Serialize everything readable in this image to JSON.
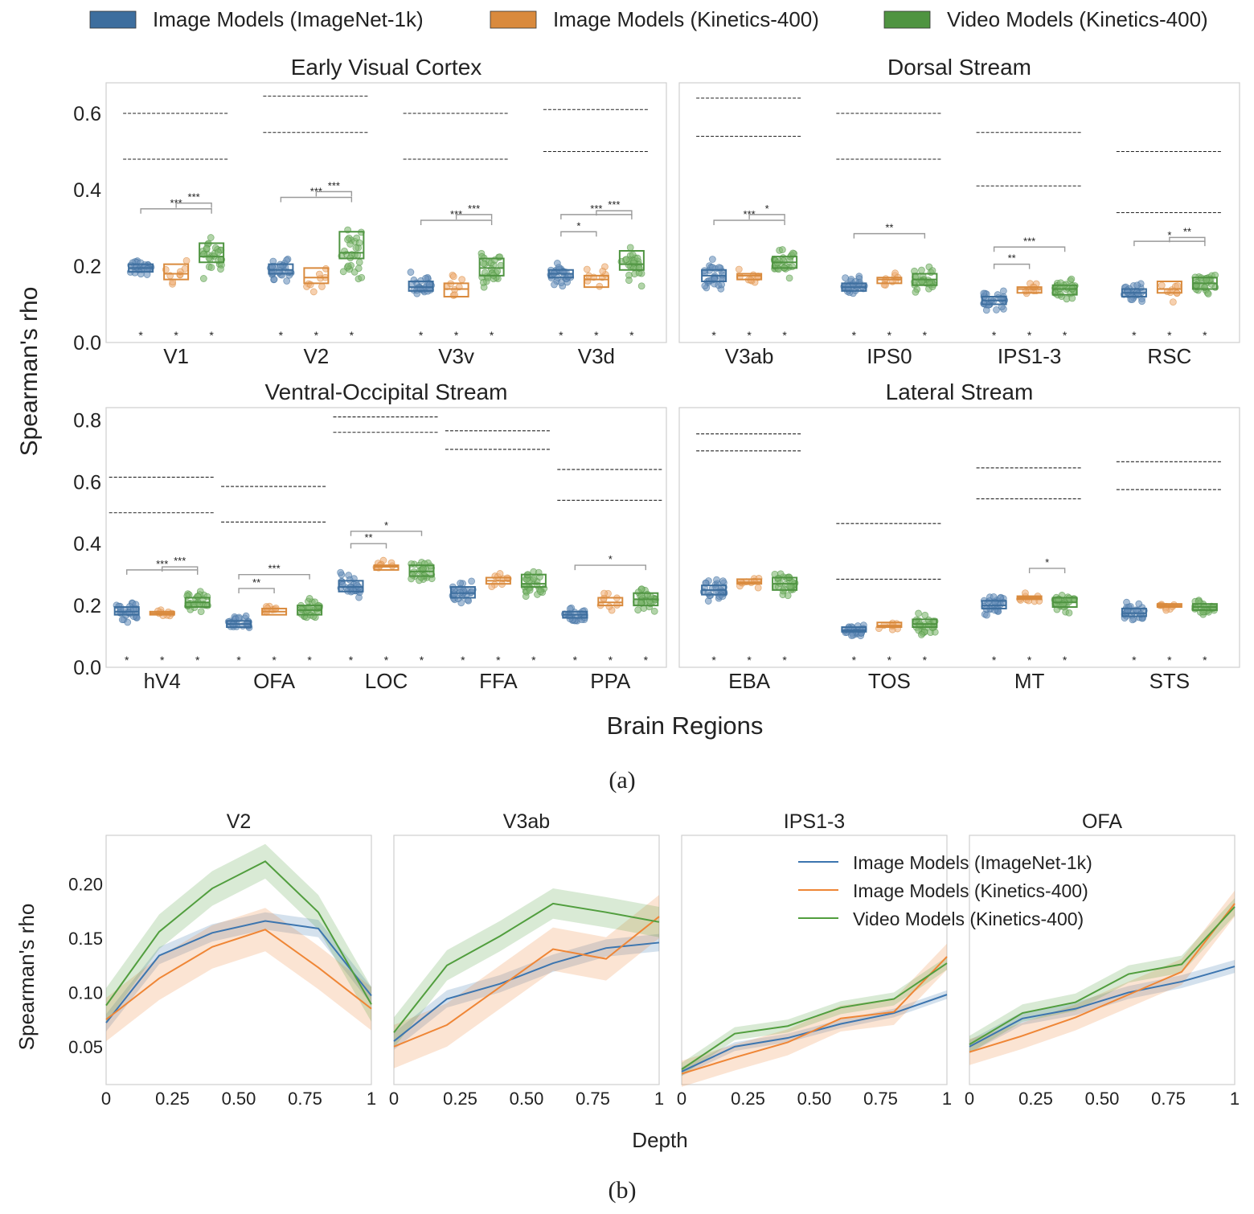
{
  "legend_top": [
    {
      "label": "Image Models (ImageNet-1k)",
      "color": "#3d6e9e"
    },
    {
      "label": "Image Models (Kinetics-400)",
      "color": "#d98a3d"
    },
    {
      "label": "Video Models (Kinetics-400)",
      "color": "#4f9441"
    }
  ],
  "panel_a_ylabel": "Spearman's rho",
  "panel_a_xlabel": "Brain Regions",
  "caption_a": "(a)",
  "caption_b": "(b)",
  "panel_b_ylabel": "Spearman's rho",
  "panel_b_xlabel": "Depth",
  "chart_data": [
    {
      "type": "box",
      "title": "Early Visual Cortex",
      "ylim": [
        0,
        0.68
      ],
      "yticks": [
        "0.0",
        "0.2",
        "0.4",
        "0.6"
      ],
      "categories": [
        "V1",
        "V2",
        "V3v",
        "V3d"
      ],
      "medians": [
        [
          0.195,
          0.18,
          0.225
        ],
        [
          0.19,
          0.17,
          0.235
        ],
        [
          0.145,
          0.14,
          0.195
        ],
        [
          0.18,
          0.165,
          0.205
        ]
      ],
      "q1": [
        [
          0.185,
          0.165,
          0.21
        ],
        [
          0.18,
          0.155,
          0.22
        ],
        [
          0.135,
          0.12,
          0.175
        ],
        [
          0.17,
          0.145,
          0.19
        ]
      ],
      "q3": [
        [
          0.205,
          0.205,
          0.26
        ],
        [
          0.205,
          0.195,
          0.29
        ],
        [
          0.16,
          0.155,
          0.22
        ],
        [
          0.19,
          0.175,
          0.24
        ]
      ],
      "ceiling": [
        [
          0.48,
          0.6
        ],
        [
          0.55,
          0.645
        ],
        [
          0.48,
          0.6
        ],
        [
          0.5,
          0.61
        ]
      ],
      "brackets": [
        {
          "cat": 0,
          "from": 0,
          "to": 2,
          "y": 0.35,
          "label": "***"
        },
        {
          "cat": 0,
          "from": 1,
          "to": 2,
          "y": 0.365,
          "label": "***"
        },
        {
          "cat": 1,
          "from": 0,
          "to": 2,
          "y": 0.38,
          "label": "***"
        },
        {
          "cat": 1,
          "from": 1,
          "to": 2,
          "y": 0.395,
          "label": "***"
        },
        {
          "cat": 2,
          "from": 0,
          "to": 2,
          "y": 0.32,
          "label": "***"
        },
        {
          "cat": 2,
          "from": 1,
          "to": 2,
          "y": 0.335,
          "label": "***"
        },
        {
          "cat": 3,
          "from": 0,
          "to": 1,
          "y": 0.29,
          "label": "*"
        },
        {
          "cat": 3,
          "from": 0,
          "to": 2,
          "y": 0.335,
          "label": "***"
        },
        {
          "cat": 3,
          "from": 1,
          "to": 2,
          "y": 0.345,
          "label": "***"
        }
      ]
    },
    {
      "type": "box",
      "title": "Dorsal Stream",
      "ylim": [
        0,
        0.68
      ],
      "yticks": [],
      "categories": [
        "V3ab",
        "IPS0",
        "IPS1-3",
        "RSC"
      ],
      "medians": [
        [
          0.175,
          0.175,
          0.21
        ],
        [
          0.145,
          0.165,
          0.165
        ],
        [
          0.11,
          0.14,
          0.14
        ],
        [
          0.13,
          0.14,
          0.155
        ]
      ],
      "q1": [
        [
          0.16,
          0.165,
          0.195
        ],
        [
          0.135,
          0.155,
          0.15
        ],
        [
          0.1,
          0.13,
          0.125
        ],
        [
          0.12,
          0.13,
          0.14
        ]
      ],
      "q3": [
        [
          0.19,
          0.18,
          0.225
        ],
        [
          0.155,
          0.17,
          0.18
        ],
        [
          0.12,
          0.145,
          0.15
        ],
        [
          0.14,
          0.16,
          0.17
        ]
      ],
      "ceiling": [
        [
          0.54,
          0.64
        ],
        [
          0.48,
          0.6
        ],
        [
          0.41,
          0.55
        ],
        [
          0.34,
          0.5
        ]
      ],
      "brackets": [
        {
          "cat": 0,
          "from": 0,
          "to": 2,
          "y": 0.32,
          "label": "***"
        },
        {
          "cat": 0,
          "from": 1,
          "to": 2,
          "y": 0.335,
          "label": "*"
        },
        {
          "cat": 1,
          "from": 0,
          "to": 2,
          "y": 0.285,
          "label": "**"
        },
        {
          "cat": 2,
          "from": 0,
          "to": 1,
          "y": 0.205,
          "label": "**"
        },
        {
          "cat": 2,
          "from": 0,
          "to": 2,
          "y": 0.25,
          "label": "***"
        },
        {
          "cat": 3,
          "from": 0,
          "to": 2,
          "y": 0.265,
          "label": "*"
        },
        {
          "cat": 3,
          "from": 1,
          "to": 2,
          "y": 0.275,
          "label": "**"
        }
      ]
    },
    {
      "type": "box",
      "title": "Ventral-Occipital Stream",
      "ylim": [
        0,
        0.84
      ],
      "yticks": [
        "0.0",
        "0.2",
        "0.4",
        "0.6",
        "0.8"
      ],
      "categories": [
        "hV4",
        "OFA",
        "LOC",
        "FFA",
        "PPA"
      ],
      "medians": [
        [
          0.18,
          0.175,
          0.21
        ],
        [
          0.14,
          0.18,
          0.185
        ],
        [
          0.26,
          0.325,
          0.31
        ],
        [
          0.24,
          0.28,
          0.27
        ],
        [
          0.17,
          0.21,
          0.22
        ]
      ],
      "q1": [
        [
          0.17,
          0.17,
          0.195
        ],
        [
          0.13,
          0.17,
          0.17
        ],
        [
          0.245,
          0.315,
          0.295
        ],
        [
          0.225,
          0.27,
          0.26
        ],
        [
          0.16,
          0.2,
          0.2
        ]
      ],
      "q3": [
        [
          0.195,
          0.18,
          0.225
        ],
        [
          0.15,
          0.19,
          0.2
        ],
        [
          0.28,
          0.33,
          0.33
        ],
        [
          0.26,
          0.29,
          0.3
        ],
        [
          0.18,
          0.225,
          0.24
        ]
      ],
      "ceiling": [
        [
          0.5,
          0.615
        ],
        [
          0.47,
          0.585
        ],
        [
          0.76,
          0.81
        ],
        [
          0.705,
          0.765
        ],
        [
          0.54,
          0.64
        ]
      ],
      "brackets": [
        {
          "cat": 0,
          "from": 0,
          "to": 2,
          "y": 0.315,
          "label": "***"
        },
        {
          "cat": 0,
          "from": 1,
          "to": 2,
          "y": 0.325,
          "label": "***"
        },
        {
          "cat": 1,
          "from": 0,
          "to": 1,
          "y": 0.255,
          "label": "**"
        },
        {
          "cat": 1,
          "from": 0,
          "to": 2,
          "y": 0.3,
          "label": "***"
        },
        {
          "cat": 2,
          "from": 0,
          "to": 1,
          "y": 0.4,
          "label": "**"
        },
        {
          "cat": 2,
          "from": 0,
          "to": 2,
          "y": 0.44,
          "label": "*"
        },
        {
          "cat": 4,
          "from": 0,
          "to": 2,
          "y": 0.33,
          "label": "*"
        }
      ]
    },
    {
      "type": "box",
      "title": "Lateral Stream",
      "ylim": [
        0,
        0.84
      ],
      "yticks": [],
      "categories": [
        "EBA",
        "TOS",
        "MT",
        "STS"
      ],
      "medians": [
        [
          0.25,
          0.275,
          0.27
        ],
        [
          0.12,
          0.135,
          0.14
        ],
        [
          0.2,
          0.225,
          0.21
        ],
        [
          0.175,
          0.2,
          0.195
        ]
      ],
      "q1": [
        [
          0.235,
          0.27,
          0.25
        ],
        [
          0.115,
          0.13,
          0.13
        ],
        [
          0.19,
          0.22,
          0.195
        ],
        [
          0.165,
          0.195,
          0.185
        ]
      ],
      "q3": [
        [
          0.265,
          0.285,
          0.29
        ],
        [
          0.13,
          0.145,
          0.155
        ],
        [
          0.215,
          0.23,
          0.225
        ],
        [
          0.19,
          0.205,
          0.205
        ]
      ],
      "ceiling": [
        [
          0.7,
          0.755
        ],
        [
          0.285,
          0.465
        ],
        [
          0.545,
          0.645
        ],
        [
          0.575,
          0.665
        ]
      ],
      "brackets": [
        {
          "cat": 2,
          "from": 1,
          "to": 2,
          "y": 0.32,
          "label": "*"
        }
      ]
    },
    {
      "type": "line",
      "title": "V2",
      "x": [
        0,
        0.2,
        0.4,
        0.6,
        0.8,
        1.0
      ],
      "xticks": [
        "0",
        "0.25",
        "0.50",
        "0.75",
        "1"
      ],
      "ylim": [
        0.015,
        0.245
      ],
      "yticks": [
        "0.05",
        "0.10",
        "0.15",
        "0.20"
      ],
      "series": [
        {
          "name": "Image Models (ImageNet-1k)",
          "values": [
            0.072,
            0.134,
            0.155,
            0.166,
            0.159,
            0.097
          ],
          "band": 0.008
        },
        {
          "name": "Image Models (Kinetics-400)",
          "values": [
            0.075,
            0.113,
            0.142,
            0.158,
            0.123,
            0.085
          ],
          "band": 0.02
        },
        {
          "name": "Video Models (Kinetics-400)",
          "values": [
            0.088,
            0.156,
            0.196,
            0.221,
            0.174,
            0.089
          ],
          "band": 0.016
        }
      ]
    },
    {
      "type": "line",
      "title": "V3ab",
      "x": [
        0,
        0.2,
        0.4,
        0.6,
        0.8,
        1.0
      ],
      "xticks": [
        "0",
        "0.25",
        "0.50",
        "0.75",
        "1"
      ],
      "ylim": [
        0.015,
        0.245
      ],
      "yticks": [],
      "series": [
        {
          "name": "Image Models (ImageNet-1k)",
          "values": [
            0.055,
            0.094,
            0.108,
            0.127,
            0.141,
            0.146
          ],
          "band": 0.008
        },
        {
          "name": "Image Models (Kinetics-400)",
          "values": [
            0.05,
            0.07,
            0.105,
            0.14,
            0.131,
            0.17
          ],
          "band": 0.02
        },
        {
          "name": "Video Models (Kinetics-400)",
          "values": [
            0.063,
            0.125,
            0.152,
            0.182,
            0.174,
            0.165
          ],
          "band": 0.014
        }
      ]
    },
    {
      "type": "line",
      "title": "IPS1-3",
      "x": [
        0,
        0.2,
        0.4,
        0.6,
        0.8,
        1.0
      ],
      "xticks": [
        "0",
        "0.25",
        "0.50",
        "0.75",
        "1"
      ],
      "ylim": [
        0.015,
        0.245
      ],
      "yticks": [],
      "series": [
        {
          "name": "Image Models (ImageNet-1k)",
          "values": [
            0.027,
            0.05,
            0.058,
            0.071,
            0.081,
            0.098
          ],
          "band": 0.004
        },
        {
          "name": "Image Models (Kinetics-400)",
          "values": [
            0.025,
            0.04,
            0.054,
            0.076,
            0.082,
            0.133
          ],
          "band": 0.012
        },
        {
          "name": "Video Models (Kinetics-400)",
          "values": [
            0.029,
            0.062,
            0.069,
            0.086,
            0.094,
            0.127
          ],
          "band": 0.006
        }
      ]
    },
    {
      "type": "line",
      "title": "OFA",
      "x": [
        0,
        0.2,
        0.4,
        0.6,
        0.8,
        1.0
      ],
      "xticks": [
        "0",
        "0.25",
        "0.50",
        "0.75",
        "1"
      ],
      "ylim": [
        0.015,
        0.245
      ],
      "yticks": [],
      "series": [
        {
          "name": "Image Models (ImageNet-1k)",
          "values": [
            0.05,
            0.076,
            0.085,
            0.1,
            0.11,
            0.124
          ],
          "band": 0.006
        },
        {
          "name": "Image Models (Kinetics-400)",
          "values": [
            0.045,
            0.06,
            0.077,
            0.098,
            0.119,
            0.182
          ],
          "band": 0.012
        },
        {
          "name": "Video Models (Kinetics-400)",
          "values": [
            0.052,
            0.081,
            0.091,
            0.117,
            0.126,
            0.179
          ],
          "band": 0.008
        }
      ]
    }
  ],
  "legend_b": [
    {
      "label": "Image Models (ImageNet-1k)",
      "color": "#3c75af"
    },
    {
      "label": "Image Models (Kinetics-400)",
      "color": "#ef8636"
    },
    {
      "label": "Video Models (Kinetics-400)",
      "color": "#519e3e"
    }
  ]
}
